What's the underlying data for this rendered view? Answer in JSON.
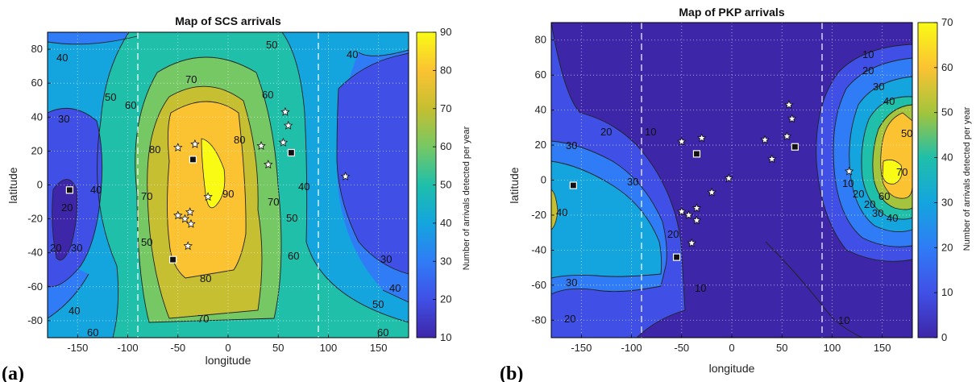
{
  "panels": [
    {
      "tag": "(a)",
      "title": "Map of SCS arrivals",
      "xlabel": "longitude",
      "ylabel": "latitude",
      "colorbar_label": "Number of arrivals detected per year",
      "xticks": [
        "-150",
        "-100",
        "-50",
        "0",
        "50",
        "100",
        "150"
      ],
      "yticks": [
        "80",
        "60",
        "40",
        "20",
        "0",
        "-20",
        "-40",
        "-60",
        "-80"
      ],
      "cbticks": [
        "90",
        "80",
        "70",
        "60",
        "50",
        "40",
        "30",
        "20",
        "10"
      ],
      "contour_labels": [
        "50",
        "40",
        "40",
        "30",
        "50",
        "60",
        "70",
        "60",
        "80",
        "80",
        "90",
        "70",
        "70",
        "40",
        "50",
        "40",
        "20",
        "30",
        "20",
        "50",
        "60",
        "30",
        "40",
        "50",
        "40",
        "60",
        "80",
        "70",
        "60"
      ]
    },
    {
      "tag": "(b)",
      "title": "Map of PKP arrivals",
      "xlabel": "longitude",
      "ylabel": "latitude",
      "colorbar_label": "Number of arrivals detected per year",
      "xticks": [
        "-150",
        "-100",
        "-50",
        "0",
        "50",
        "100",
        "150"
      ],
      "yticks": [
        "80",
        "60",
        "40",
        "20",
        "0",
        "-20",
        "-40",
        "-60",
        "-80"
      ],
      "cbticks": [
        "70",
        "60",
        "50",
        "40",
        "30",
        "20",
        "10",
        "0"
      ],
      "contour_labels": [
        "10",
        "20",
        "30",
        "40",
        "50",
        "60",
        "70",
        "10",
        "20",
        "20",
        "30",
        "40",
        "30",
        "20",
        "30",
        "10",
        "20",
        "30",
        "40",
        "10",
        "20",
        "10"
      ]
    }
  ],
  "chart_data": [
    {
      "type": "heatmap",
      "title": "Map of SCS arrivals",
      "xlabel": "longitude",
      "ylabel": "latitude",
      "xlim": [
        -180,
        180
      ],
      "ylim": [
        -90,
        90
      ],
      "grid": true,
      "colorbar": {
        "label": "Number of arrivals detected per year",
        "range": [
          10,
          90
        ],
        "ticks": [
          10,
          20,
          30,
          40,
          50,
          60,
          70,
          80,
          90
        ]
      },
      "contour_levels": [
        20,
        30,
        40,
        50,
        60,
        70,
        80,
        90
      ],
      "dashed_longitudes": [
        -90,
        90
      ],
      "stations": [
        [
          -158,
          -3
        ],
        [
          -35,
          15
        ],
        [
          63,
          19
        ],
        [
          -55,
          -44
        ]
      ],
      "events": [
        [
          -50,
          22
        ],
        [
          -33,
          24
        ],
        [
          -20,
          -7
        ],
        [
          -50,
          -18
        ],
        [
          -43,
          -20
        ],
        [
          -38,
          -16
        ],
        [
          -37,
          -23
        ],
        [
          -40,
          -36
        ],
        [
          33,
          23
        ],
        [
          40,
          12
        ],
        [
          55,
          25
        ],
        [
          57,
          43
        ],
        [
          60,
          35
        ],
        [
          117,
          5
        ]
      ]
    },
    {
      "type": "heatmap",
      "title": "Map of PKP arrivals",
      "xlabel": "longitude",
      "ylabel": "latitude",
      "xlim": [
        -180,
        180
      ],
      "ylim": [
        -90,
        90
      ],
      "grid": true,
      "colorbar": {
        "label": "Number of arrivals detected per year",
        "range": [
          0,
          70
        ],
        "ticks": [
          0,
          10,
          20,
          30,
          40,
          50,
          60,
          70
        ]
      },
      "contour_levels": [
        10,
        20,
        30,
        40,
        50,
        60,
        70
      ],
      "dashed_longitudes": [
        -90,
        90
      ],
      "stations": [
        [
          -158,
          -3
        ],
        [
          -35,
          15
        ],
        [
          63,
          19
        ],
        [
          -55,
          -44
        ]
      ],
      "events": [
        [
          -50,
          22
        ],
        [
          -30,
          24
        ],
        [
          -20,
          -7
        ],
        [
          -50,
          -18
        ],
        [
          -43,
          -20
        ],
        [
          -35,
          -16
        ],
        [
          -35,
          -23
        ],
        [
          -40,
          -36
        ],
        [
          -3,
          1
        ],
        [
          33,
          23
        ],
        [
          40,
          12
        ],
        [
          55,
          25
        ],
        [
          57,
          43
        ],
        [
          60,
          35
        ],
        [
          117,
          5
        ]
      ]
    }
  ]
}
